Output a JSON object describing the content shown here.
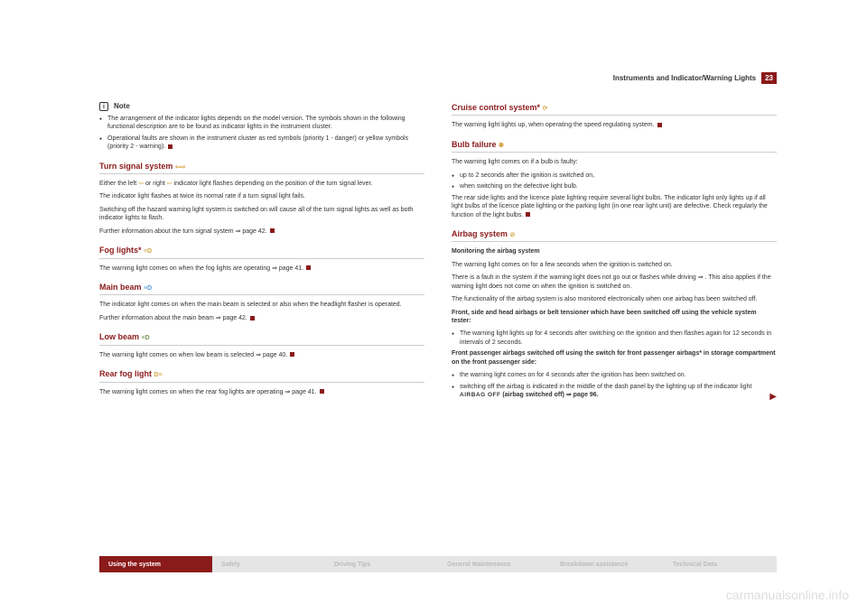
{
  "header": {
    "title": "Instruments and Indicator/Warning Lights",
    "pageNum": "23"
  },
  "left": {
    "note": {
      "label": "Note",
      "b1": "The arrangement of the indicator lights depends on the model version. The symbols shown in the following functional description are to be found as indicator lights in the instrument cluster.",
      "b2": "Operational faults are shown in the instrument cluster as red symbols (priority 1 - danger) or yellow symbols (priority 2 - warning)."
    },
    "turn": {
      "title": "Turn signal system",
      "p1a": "Either the left ",
      "p1b": " or right ",
      "p1c": " indicator light flashes depending on the position of the turn signal lever.",
      "p2": "The indicator light flashes at twice its normal rate if a turn signal light fails.",
      "p3": "Switching off the hazard warning light system is switched on will cause all of the turn signal lights as well as both indicator lights to flash.",
      "p4": "Further information about the turn signal system ⇒ page 42."
    },
    "fog": {
      "title": "Fog lights*",
      "p1": "The warning light  comes on when the fog lights are operating ⇒ page 41."
    },
    "main": {
      "title": "Main beam",
      "p1": "The indicator light  comes on when the main beam is selected or also when the headlight flasher is operated.",
      "p2": "Further information about the main beam ⇒ page 42."
    },
    "low": {
      "title": "Low beam",
      "p1": "The warning light  comes on when low beam is selected ⇒ page 40."
    },
    "rear": {
      "title": "Rear fog light",
      "p1": "The warning light  comes on when the rear fog lights are operating ⇒ page 41."
    }
  },
  "right": {
    "cruise": {
      "title": "Cruise control system*",
      "p1": "The warning light  lights up, when operating the speed regulating system."
    },
    "bulb": {
      "title": "Bulb failure",
      "p1": "The warning light  comes on if a bulb is faulty:",
      "b1": "up to 2 seconds after the ignition is switched on,",
      "b2": "when switching on the defective light bulb.",
      "p2": "The rear side lights and the licence plate lighting require several light bulbs. The indicator light  only lights up if all light bulbs of the licence plate lighting or the parking light (in one rear light unit) are defective. Check regularly the function of the light bulbs."
    },
    "airbag": {
      "title": "Airbag system",
      "h1": "Monitoring the airbag system",
      "p1": "The warning light  comes on for a few seconds when the ignition is switched on.",
      "p2": "There is a fault in the system if the warning light does not go out or flashes while driving ⇒ . This also applies if the warning light does not come on when the ignition is switched on.",
      "p3": "The functionality of the airbag system is also monitored electronically when one airbag has been switched off.",
      "h2": "Front, side and head airbags or belt tensioner which have been switched off using the vehicle system tester:",
      "b1": "The warning light  lights up for 4 seconds after switching on the ignition and then flashes again for 12 seconds in intervals of 2 seconds.",
      "h3": "Front passenger airbags switched off using the switch for front passenger airbags* in storage compartment on the front passenger side:",
      "b2": "the warning light  comes on for 4 seconds after the ignition has been switched on.",
      "b3a": "switching off the airbag is indicated in the middle of the dash panel by the lighting up of the indicator light ",
      "b3label": "AIRBAG OFF",
      "b3b": " (airbag switched off) ⇒ page 96."
    }
  },
  "tabs": {
    "t1": "Using the system",
    "t2": "Safety",
    "t3": "Driving Tips",
    "t4": "General Maintenance",
    "t5": "Breakdown assistance",
    "t6": "Technical Data"
  },
  "watermark": "carmanualsonline.info"
}
